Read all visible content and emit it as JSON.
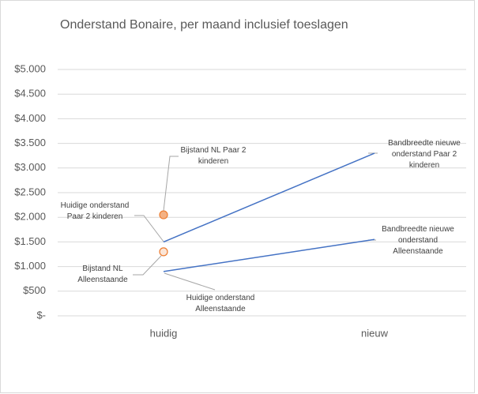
{
  "chart_data": {
    "type": "line",
    "title": "Onderstand Bonaire, per maand inclusief toeslagen",
    "categories": [
      "huidig",
      "nieuw"
    ],
    "ylim": [
      0,
      5000
    ],
    "yticks": [
      {
        "value": 0,
        "label": "$-"
      },
      {
        "value": 500,
        "label": "$500"
      },
      {
        "value": 1000,
        "label": "$1.000"
      },
      {
        "value": 1500,
        "label": "$1.500"
      },
      {
        "value": 2000,
        "label": "$2.000"
      },
      {
        "value": 2500,
        "label": "$2.500"
      },
      {
        "value": 3000,
        "label": "$3.000"
      },
      {
        "value": 3500,
        "label": "$3.500"
      },
      {
        "value": 4000,
        "label": "$4.000"
      },
      {
        "value": 4500,
        "label": "$4.500"
      },
      {
        "value": 5000,
        "label": "$5.000"
      }
    ],
    "grid": true,
    "series": [
      {
        "mode": "line",
        "color": "#4472c4",
        "values": [
          1500,
          3300
        ]
      },
      {
        "mode": "line",
        "color": "#4472c4",
        "values": [
          900,
          1550
        ]
      },
      {
        "mode": "markers",
        "color": "#ed7d31",
        "fill": "#f4b183",
        "values": [
          2050,
          null
        ]
      },
      {
        "mode": "markers",
        "color": "#ed7d31",
        "fill": "#fbe5d6",
        "values": [
          1300,
          null
        ]
      }
    ],
    "annotations": [
      "Bijstand NL Paar 2 kinderen",
      "Huidige onderstand Paar 2 kinderen",
      "Bijstand NL Alleenstaande",
      "Huidige onderstand Alleenstaande",
      "Bandbreedte nieuwe onderstand Paar 2 kinderen",
      "Bandbreedte nieuwe onderstand Alleenstaande"
    ]
  }
}
